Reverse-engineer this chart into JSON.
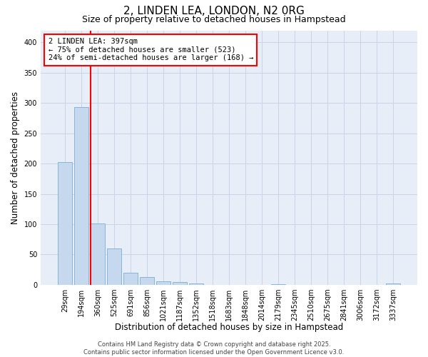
{
  "title": "2, LINDEN LEA, LONDON, N2 0RG",
  "subtitle": "Size of property relative to detached houses in Hampstead",
  "xlabel": "Distribution of detached houses by size in Hampstead",
  "ylabel": "Number of detached properties",
  "categories": [
    "29sqm",
    "194sqm",
    "360sqm",
    "525sqm",
    "691sqm",
    "856sqm",
    "1021sqm",
    "1187sqm",
    "1352sqm",
    "1518sqm",
    "1683sqm",
    "1848sqm",
    "2014sqm",
    "2179sqm",
    "2345sqm",
    "2510sqm",
    "2675sqm",
    "2841sqm",
    "3006sqm",
    "3172sqm",
    "3337sqm"
  ],
  "values": [
    203,
    293,
    101,
    60,
    20,
    13,
    5,
    4,
    2,
    0,
    0,
    0,
    0,
    1,
    0,
    0,
    0,
    0,
    0,
    0,
    2
  ],
  "bar_color": "#c5d8ee",
  "bar_edgecolor": "#7baed4",
  "red_line_index": 2,
  "annotation_text": "2 LINDEN LEA: 397sqm\n← 75% of detached houses are smaller (523)\n24% of semi-detached houses are larger (168) →",
  "annotation_box_color": "white",
  "annotation_box_edgecolor": "red",
  "vline_color": "red",
  "ylim": [
    0,
    420
  ],
  "yticks": [
    0,
    50,
    100,
    150,
    200,
    250,
    300,
    350,
    400
  ],
  "grid_color": "#c8d4e8",
  "background_color": "#e8eef8",
  "footer": "Contains HM Land Registry data © Crown copyright and database right 2025.\nContains public sector information licensed under the Open Government Licence v3.0.",
  "title_fontsize": 11,
  "subtitle_fontsize": 9,
  "xlabel_fontsize": 8.5,
  "ylabel_fontsize": 8.5,
  "tick_fontsize": 7,
  "annotation_fontsize": 7.5,
  "footer_fontsize": 6
}
